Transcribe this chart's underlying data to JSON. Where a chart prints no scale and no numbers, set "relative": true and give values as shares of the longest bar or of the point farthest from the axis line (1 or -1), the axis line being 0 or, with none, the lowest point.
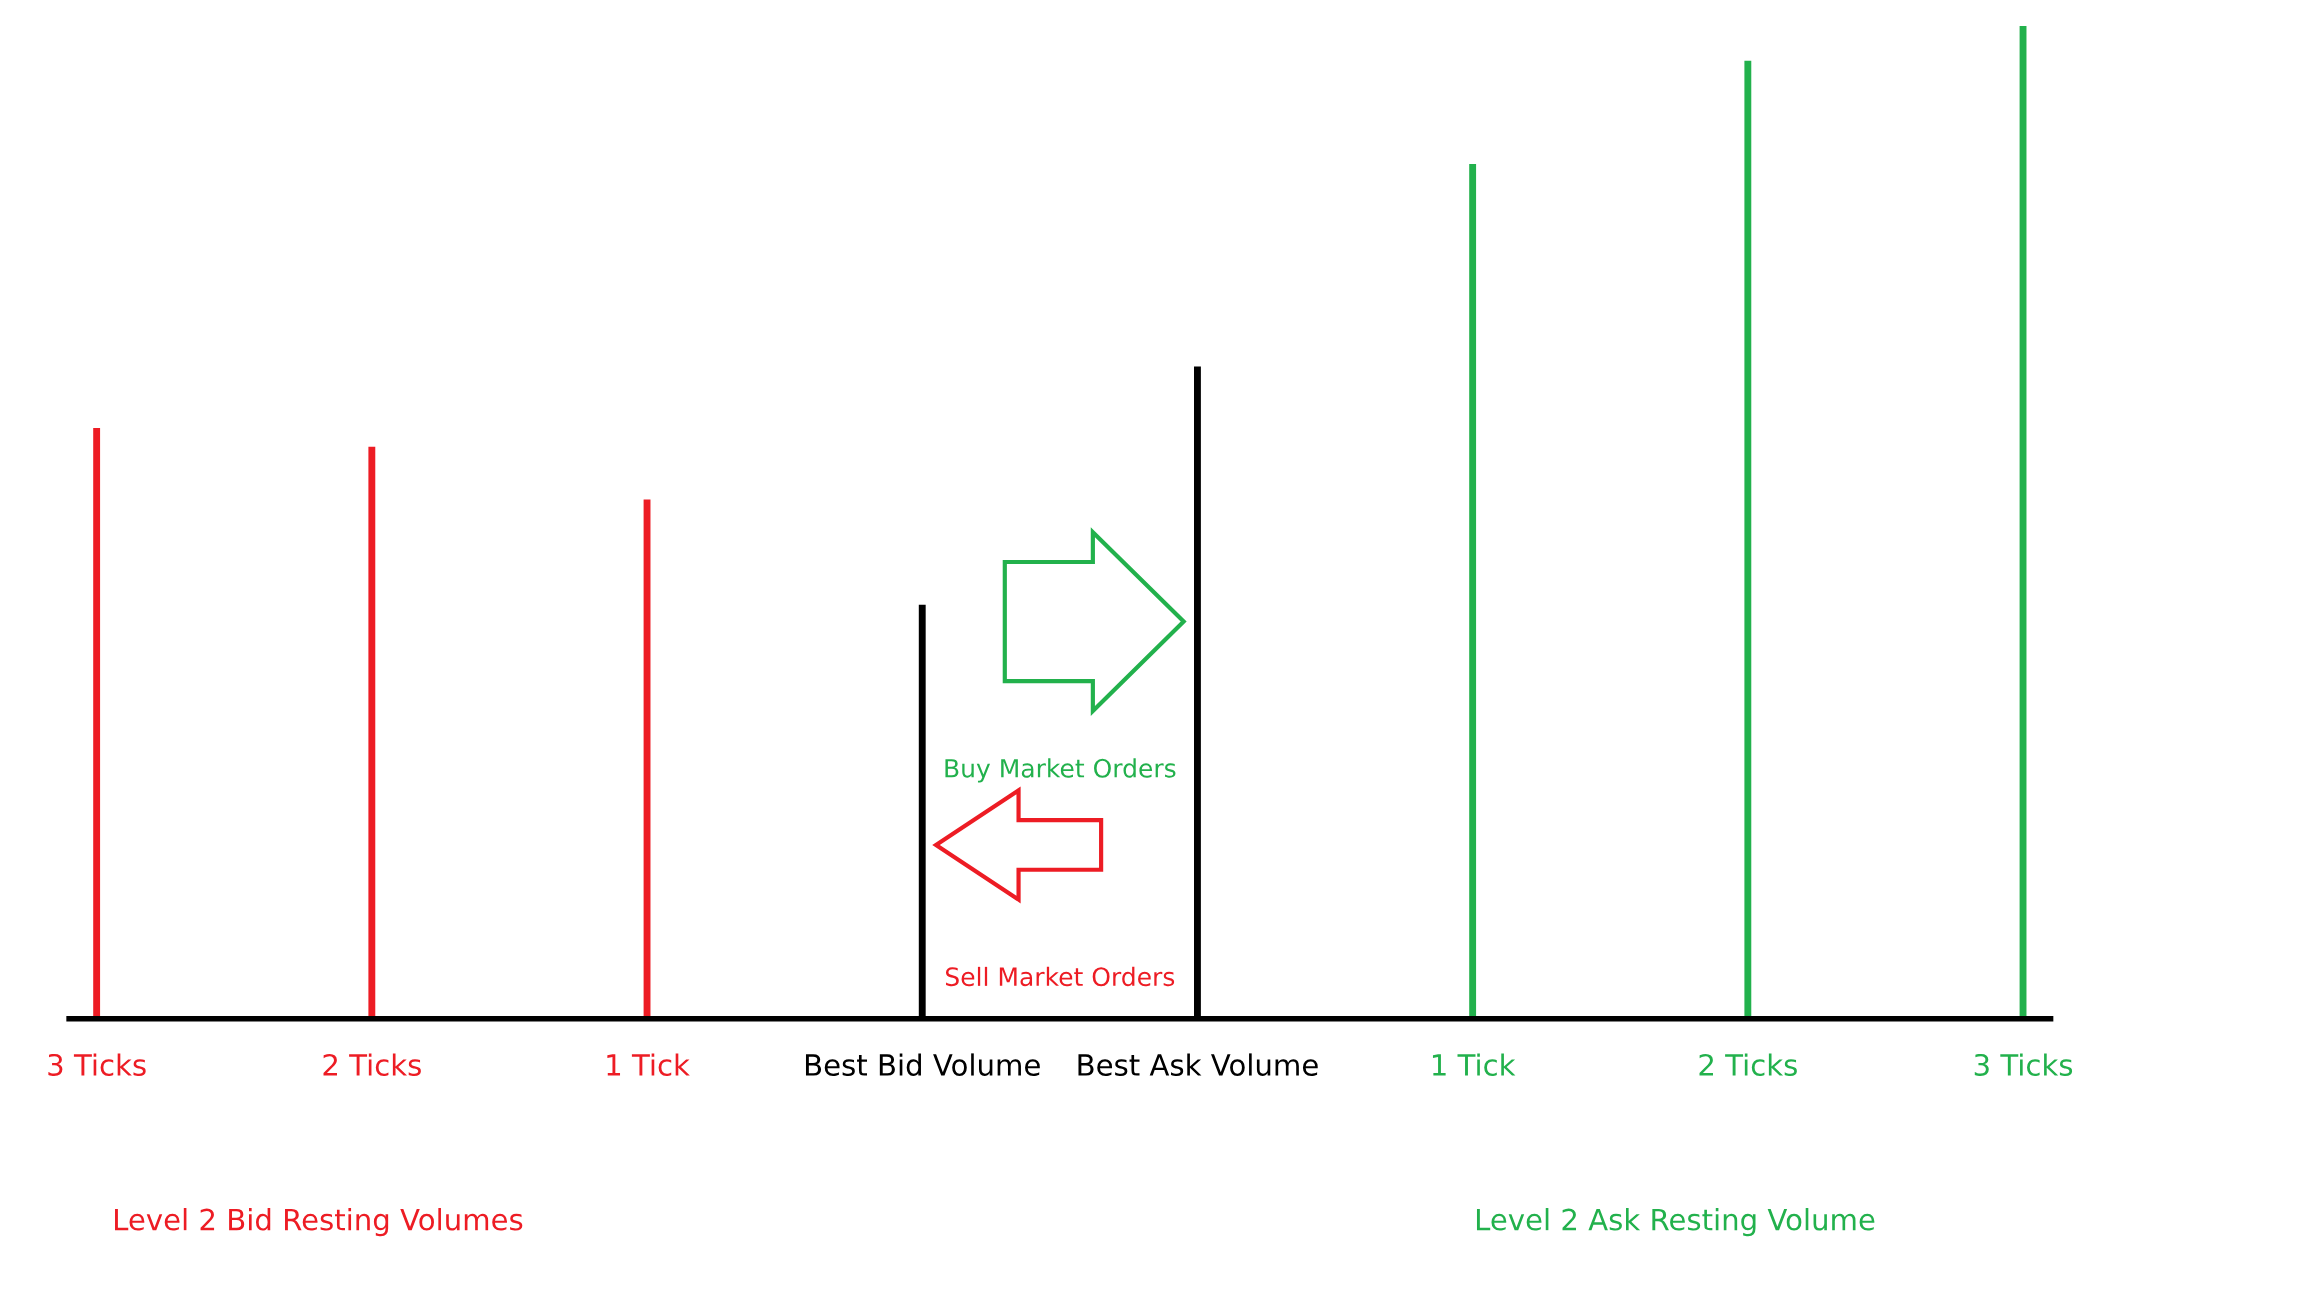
{
  "chart_data": {
    "type": "bar",
    "relative": true,
    "categories": [
      "3 Ticks",
      "2 Ticks",
      "1 Tick",
      "Best Bid Volume",
      "Best Ask Volume",
      "1 Tick",
      "2 Ticks",
      "3 Ticks"
    ],
    "values": [
      0.595,
      0.576,
      0.523,
      0.417,
      0.657,
      0.861,
      0.965,
      1
    ],
    "colors": [
      "#ed1c24",
      "#ed1c24",
      "#ed1c24",
      "#000000",
      "#000000",
      "#22b14c",
      "#22b14c",
      "#22b14c"
    ],
    "annotations": [
      "Buy Market Orders",
      "Sell Market Orders",
      "Level 2 Bid Resting Volumes",
      "Level 2 Ask Resting Volume"
    ],
    "grid": false,
    "legend": false
  }
}
